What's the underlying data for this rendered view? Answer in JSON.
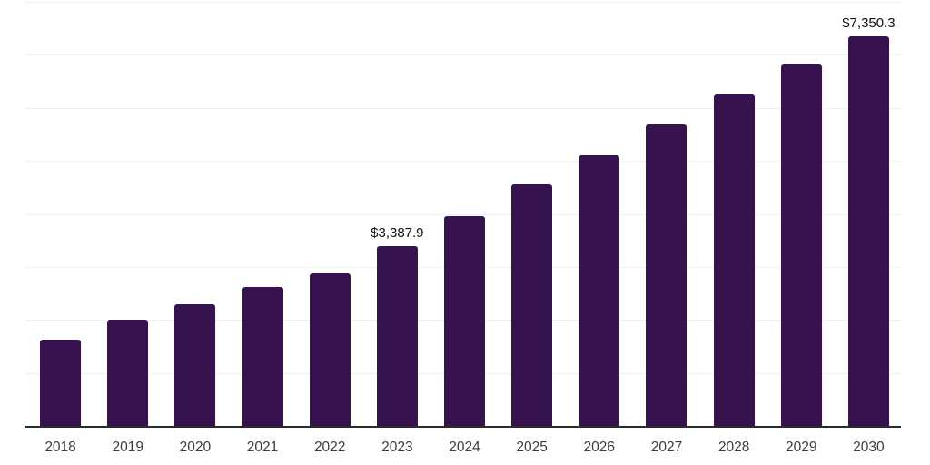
{
  "chart_data": {
    "type": "bar",
    "title": "",
    "xlabel": "",
    "ylabel": "",
    "categories": [
      "2018",
      "2019",
      "2020",
      "2021",
      "2022",
      "2023",
      "2024",
      "2025",
      "2026",
      "2027",
      "2028",
      "2029",
      "2030"
    ],
    "values": [
      1620,
      2010,
      2295,
      2625,
      2880,
      3387.9,
      3955,
      4550,
      5110,
      5680,
      6250,
      6820,
      7350.3
    ],
    "labeled_points": [
      {
        "category": "2023",
        "label": "$3,387.9"
      },
      {
        "category": "2030",
        "label": "$7,350.3"
      }
    ],
    "ylim": [
      0,
      8000
    ],
    "gridline_step": 1000,
    "grid": "horizontal",
    "y_tick_labels_visible": false,
    "legend_position": "none",
    "colors": {
      "bar": "#36124E",
      "axis_line": "#2B2B2B",
      "gridline": "#F0F0F2",
      "tick_label": "#3D3D3D",
      "data_label": "#121212",
      "background": "#FFFFFF"
    }
  }
}
